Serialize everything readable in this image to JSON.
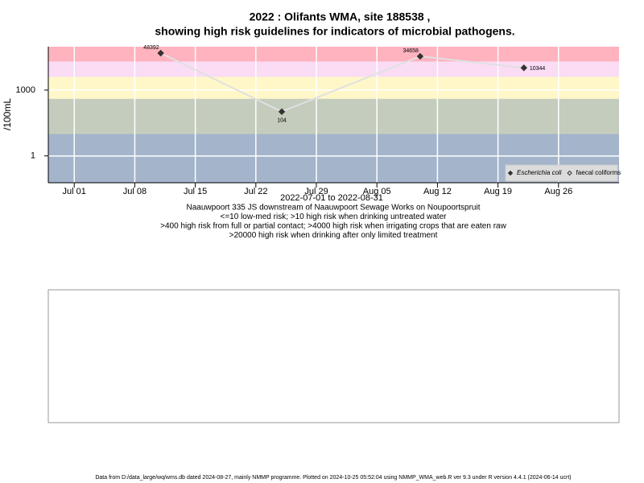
{
  "chart_data": {
    "type": "line",
    "title": "2022 : Olifants WMA, site 188538 ,",
    "subtitle": "showing high risk guidelines for indicators of microbial pathogens.",
    "x_label": "2022-07-01 to 2022-08-31",
    "y_label": "/100mL",
    "notes": [
      "Naauwpoort 335 JS downstream of Naauwpoort Sewage Works on Noupoortspruit",
      "<=10 low-med risk; >10 high risk when drinking untreated water",
      ">400 high risk from full or partial contact; >4000 high risk when irrigating crops that are eaten raw",
      ">20000 high risk when drinking after only limited treatment"
    ],
    "footer": "Data from D:/data_large/wq/wms.db dated 2024-08-27, mainly NMMP programme. Plotted on 2024-10-25 05:52:04 using NMMP_WMA_web.R ver 9.3 under R version 4.4.1 (2024-06-14 ucrt)",
    "x": [
      "Jul 11",
      "Jul 25",
      "Aug 10",
      "Aug 22"
    ],
    "series": [
      {
        "name": "Escherichia coli",
        "color": "#333333",
        "values": [
          48392,
          104,
          34658,
          10344
        ]
      },
      {
        "name": "faecal coliforms",
        "color": "#333333",
        "values": [
          null,
          null,
          null,
          null
        ]
      }
    ],
    "xlim": [
      "Jun 28",
      "Sep 02"
    ],
    "xticks": [
      "Jul 01",
      "Jul 08",
      "Jul 15",
      "Jul 22",
      "Jul 29",
      "Aug 05",
      "Aug 12",
      "Aug 19",
      "Aug 26"
    ],
    "ylim": [
      0.06,
      95000
    ],
    "yticks": [
      1,
      1000
    ],
    "log_y": true,
    "grid": true,
    "legend": "bottom-right",
    "line_color": "#e0e0e0",
    "bands": [
      {
        "from": 20000,
        "color": "#ffb3bf"
      },
      {
        "from": 4000,
        "color": "#fadcf5"
      },
      {
        "from": 400,
        "color": "#fff7c8"
      },
      {
        "from": 10,
        "color": "#c4ccbe"
      },
      {
        "from": 0.06,
        "color": "#a3b4cb"
      }
    ]
  }
}
